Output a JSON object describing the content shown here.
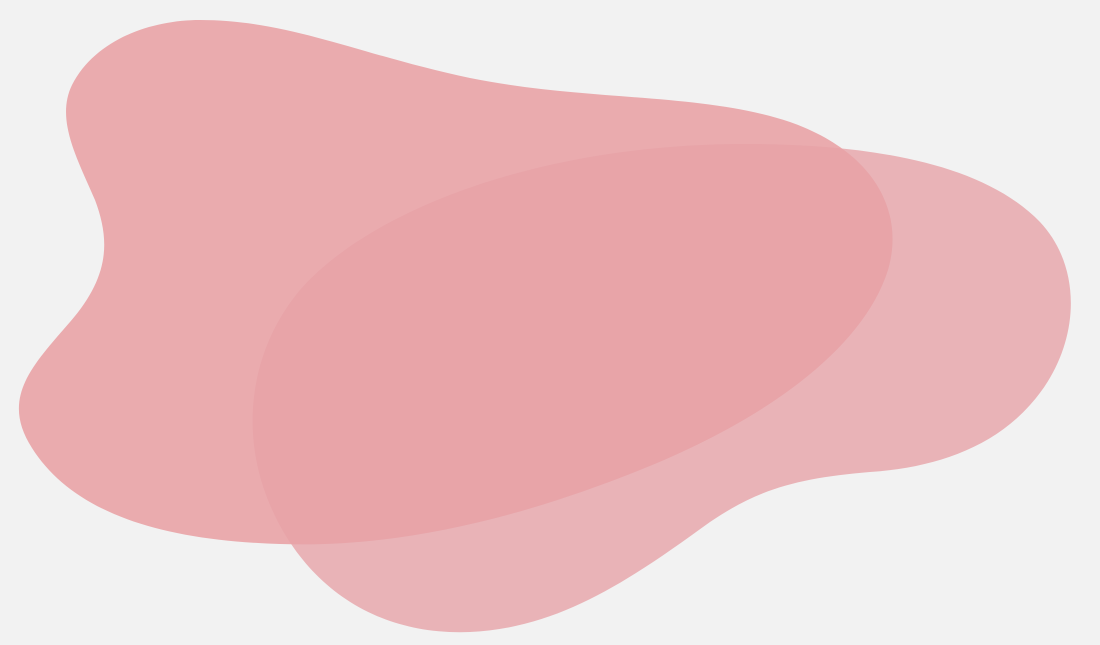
{
  "background_color": "#f2f2f2",
  "shapes": [
    {
      "name": "left-blob",
      "icon": "blob-shape",
      "color": "#e9a3a6",
      "opacity": 0.9
    },
    {
      "name": "right-blob",
      "icon": "blob-shape",
      "color": "#e7a2a6",
      "opacity": 0.78
    }
  ]
}
